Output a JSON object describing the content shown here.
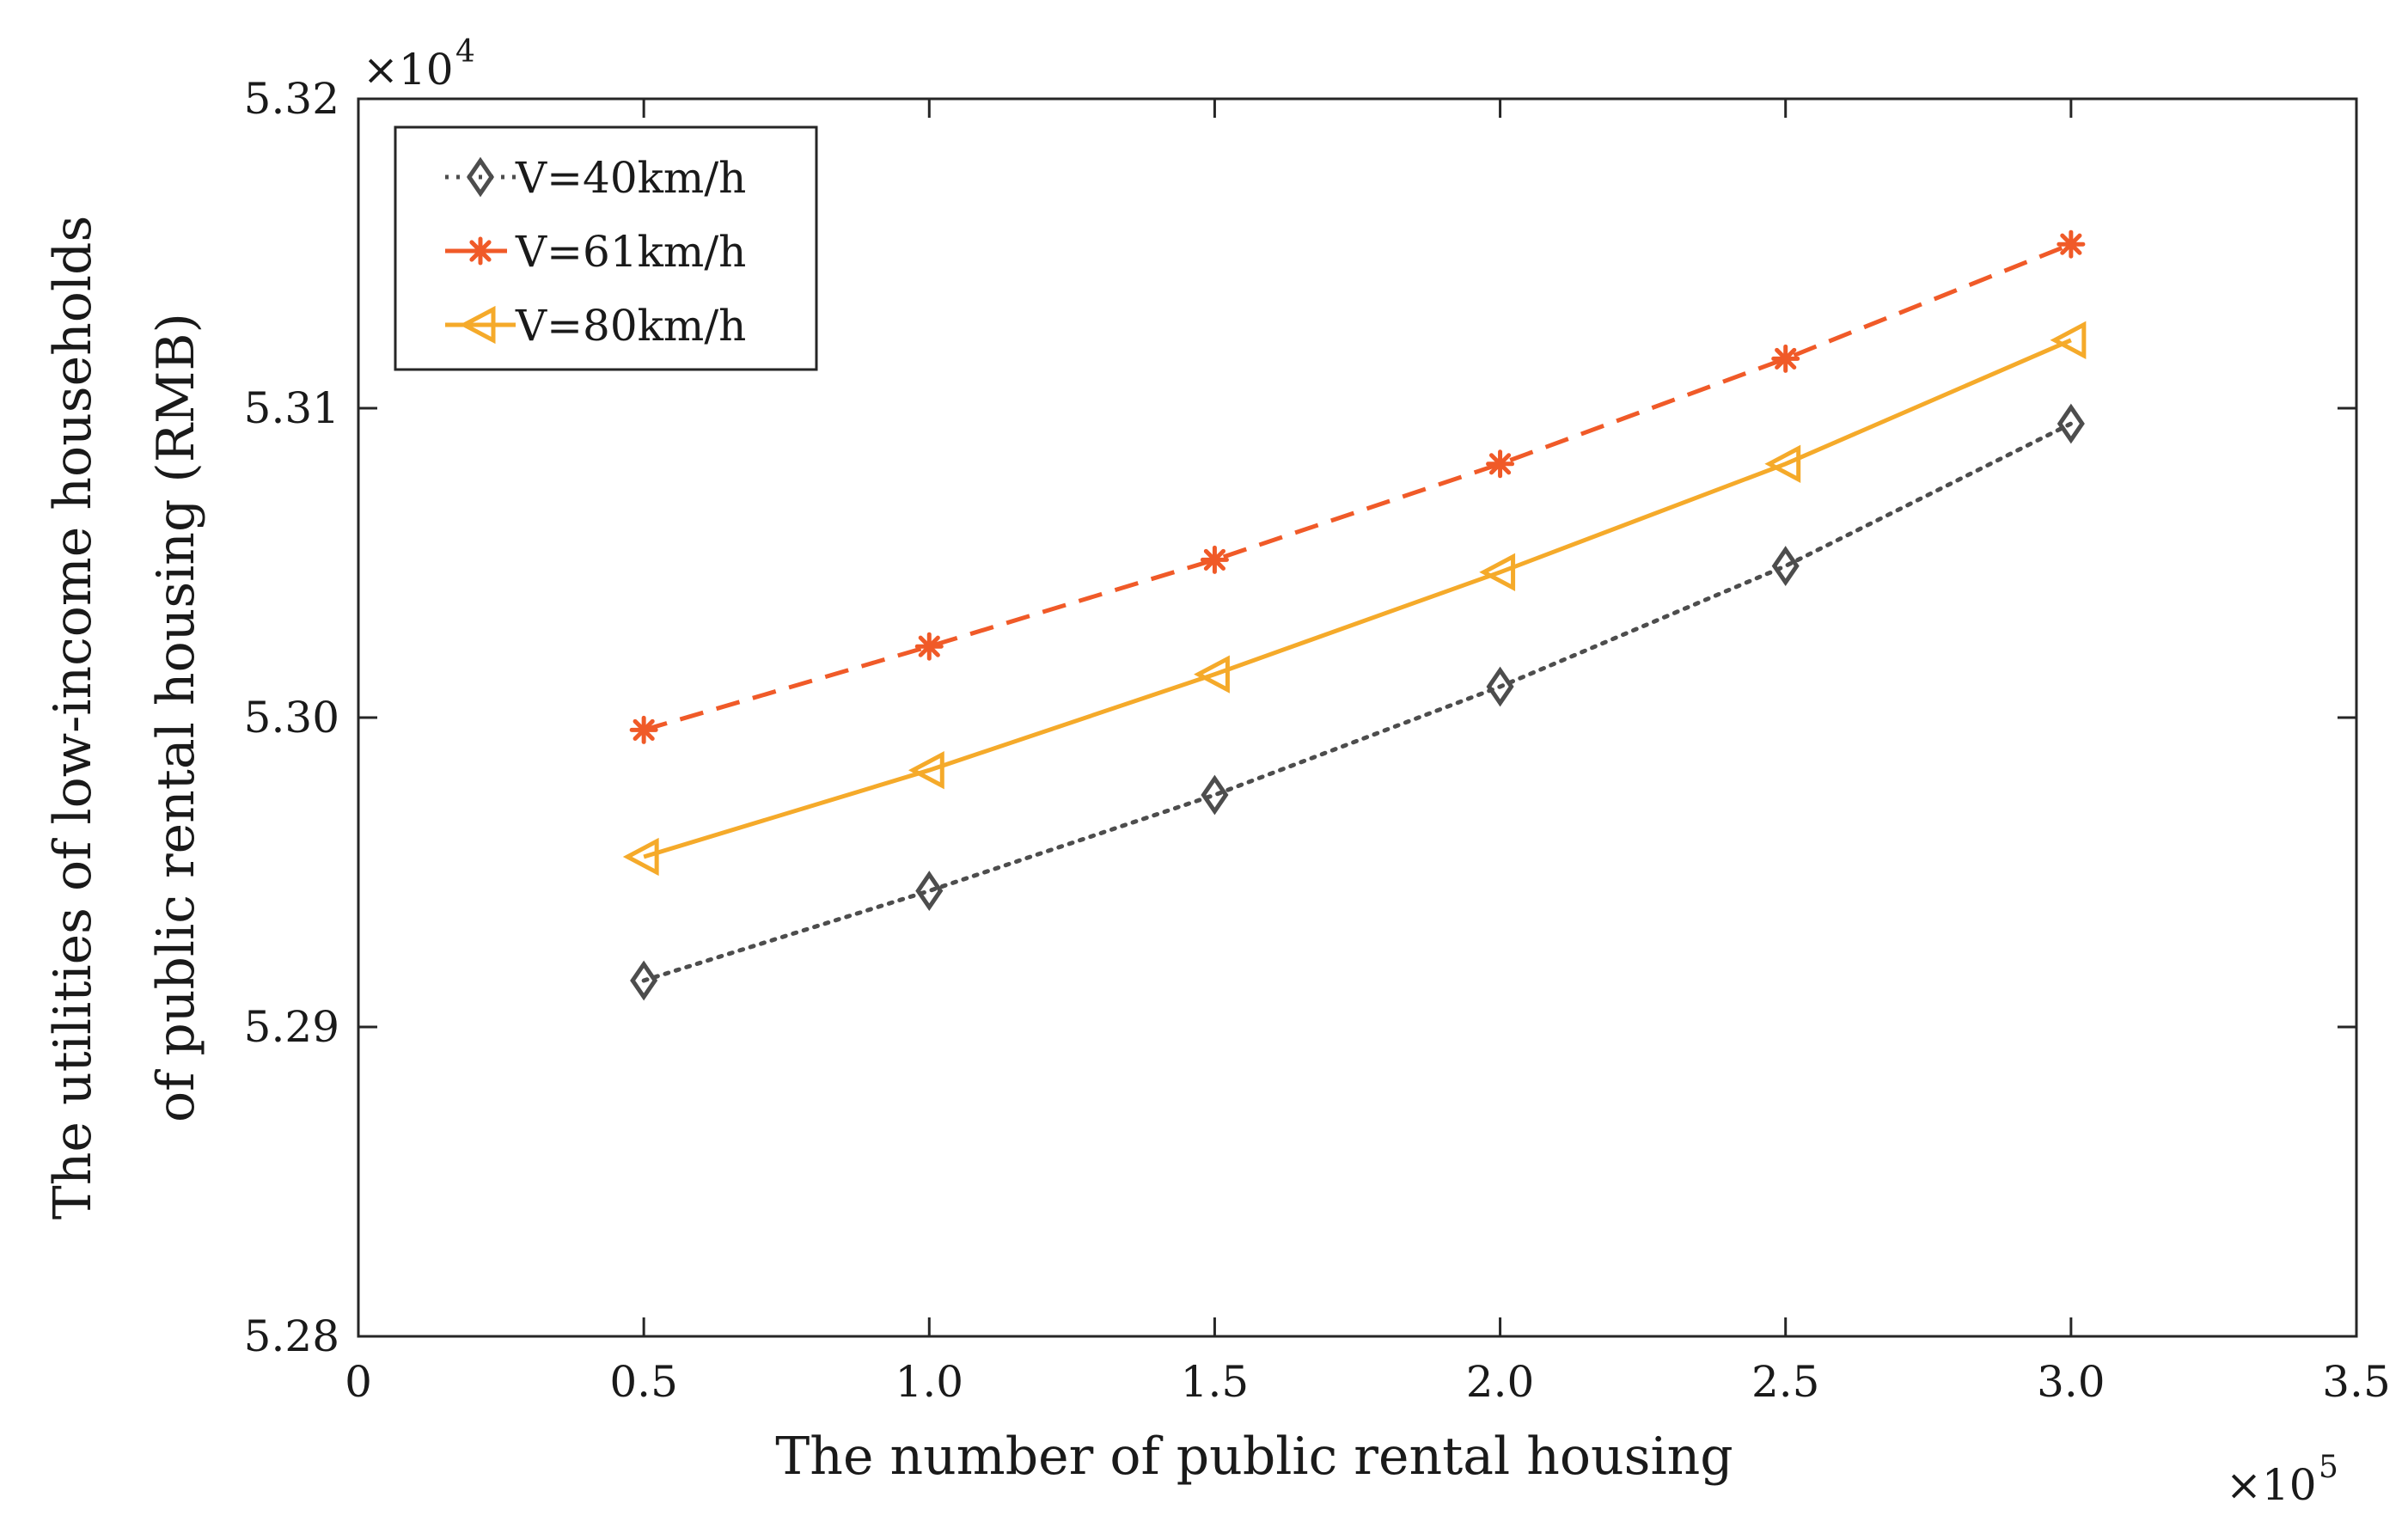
{
  "chart_data": {
    "type": "line",
    "title": "",
    "xlabel": "The number of public rental housing",
    "ylabel_line1": "The utilities of low-income households",
    "ylabel_line2": "of public rental housing (RMB)",
    "x_multiplier": {
      "base": "×10",
      "exp": "5"
    },
    "y_multiplier": {
      "base": "×10",
      "exp": "4"
    },
    "xlim": [
      0,
      3.5
    ],
    "ylim": [
      5.28,
      5.32
    ],
    "xticks": [
      0,
      0.5,
      1.0,
      1.5,
      2.0,
      2.5,
      3.0,
      3.5
    ],
    "xtick_labels": [
      "0",
      "0.5",
      "1.0",
      "1.5",
      "2.0",
      "2.5",
      "3.0",
      "3.5"
    ],
    "yticks": [
      5.28,
      5.29,
      5.3,
      5.31,
      5.32
    ],
    "ytick_labels": [
      "5.28",
      "5.29",
      "5.30",
      "5.31",
      "5.32"
    ],
    "grid": false,
    "legend_position": "top-left",
    "x": [
      0.5,
      1.0,
      1.5,
      2.0,
      2.5,
      3.0
    ],
    "series": [
      {
        "name": "V=40km/h",
        "color": "#4d4d4d",
        "line_style": "dotted",
        "marker": "diamond",
        "values": [
          5.2915,
          5.2944,
          5.2975,
          5.301,
          5.3049,
          5.3095
        ]
      },
      {
        "name": "V=61km/h",
        "color": "#f05a28",
        "line_style": "dashed",
        "marker": "asterisk",
        "values": [
          5.2996,
          5.3023,
          5.3051,
          5.3082,
          5.3116,
          5.3153
        ]
      },
      {
        "name": "V=80km/h",
        "color": "#f5aa2a",
        "line_style": "solid",
        "marker": "triangle-left",
        "values": [
          5.2955,
          5.2983,
          5.3014,
          5.3047,
          5.3082,
          5.3122
        ]
      }
    ]
  }
}
